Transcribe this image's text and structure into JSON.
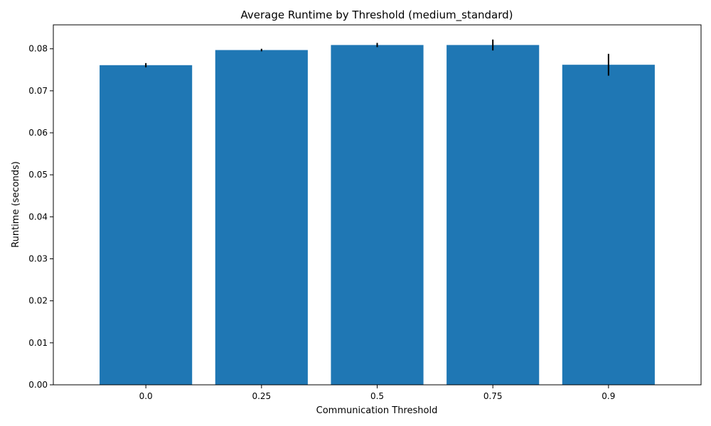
{
  "chart_data": {
    "type": "bar",
    "title": "Average Runtime by Threshold (medium_standard)",
    "xlabel": "Communication Threshold",
    "ylabel": "Runtime (seconds)",
    "categories": [
      "0.0",
      "0.25",
      "0.5",
      "0.75",
      "0.9"
    ],
    "values": [
      0.0761,
      0.0797,
      0.0809,
      0.0809,
      0.0762
    ],
    "errors": [
      0.0005,
      0.0003,
      0.0005,
      0.0013,
      0.0026
    ],
    "ylim": [
      0,
      0.0857
    ],
    "yticks": [
      "0.00",
      "0.01",
      "0.02",
      "0.03",
      "0.04",
      "0.05",
      "0.06",
      "0.07",
      "0.08"
    ],
    "bar_color": "#1f77b4",
    "error_color": "#000000",
    "grid": false,
    "legend": "none"
  }
}
